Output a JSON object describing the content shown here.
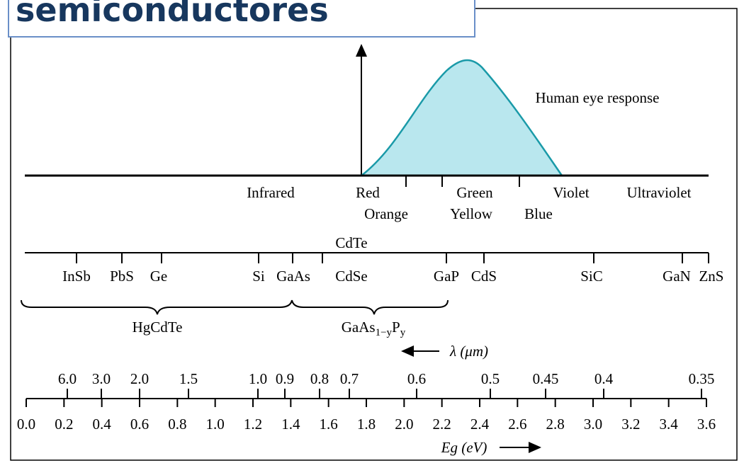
{
  "header": {
    "title": "semiconductores"
  },
  "spectrum": {
    "curve_label": "Human eye response",
    "bands": [
      "Infrared",
      "Red",
      "Orange",
      "Green",
      "Yellow",
      "Violet",
      "Blue",
      "Ultraviolet"
    ]
  },
  "materials": {
    "top": "CdTe",
    "items": [
      "InSb",
      "PbS",
      "Ge",
      "Si",
      "GaAs",
      "CdSe",
      "GaP",
      "CdS",
      "SiC",
      "GaN",
      "ZnS"
    ]
  },
  "alloys": {
    "first": "HgCdTe",
    "second": [
      "GaAs",
      "1−y",
      "P",
      "y"
    ]
  },
  "wavelength_axis": {
    "label": "λ (μm)",
    "ticks": [
      "6.0",
      "3.0",
      "2.0",
      "1.5",
      "1.0",
      "0.9",
      "0.8",
      "0.7",
      "0.6",
      "0.5",
      "0.45",
      "0.4",
      "0.35"
    ]
  },
  "energy_axis": {
    "label": "Eg (eV)",
    "ticks": [
      "0.0",
      "0.2",
      "0.4",
      "0.6",
      "0.8",
      "1.0",
      "1.2",
      "1.4",
      "1.6",
      "1.8",
      "2.0",
      "2.2",
      "2.4",
      "2.6",
      "2.8",
      "3.0",
      "3.2",
      "3.4",
      "3.6"
    ]
  }
}
